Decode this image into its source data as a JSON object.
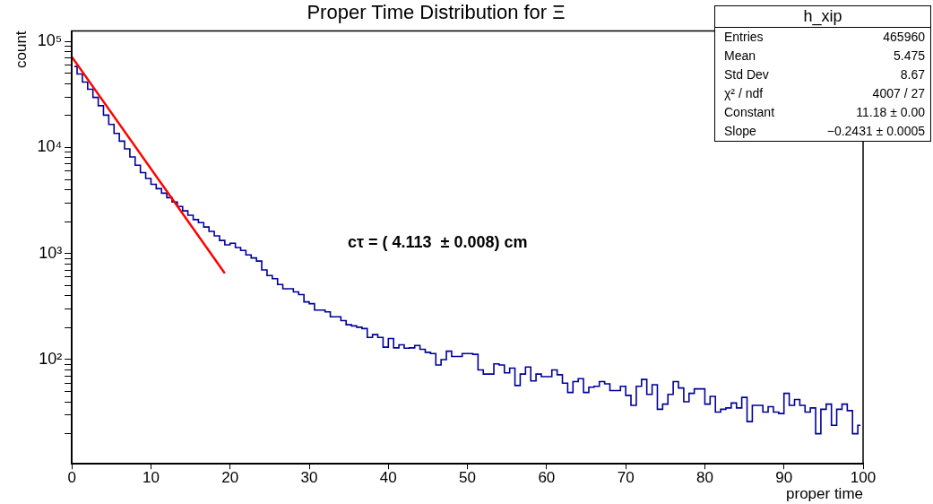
{
  "chart_data": {
    "type": "step",
    "title": "Proper Time Distribution for Ξ",
    "xlabel": "proper time",
    "ylabel": "count",
    "log": "y",
    "grid": false,
    "legend": false,
    "xlim": [
      0,
      100
    ],
    "xticks": [
      0,
      10,
      20,
      30,
      40,
      50,
      60,
      70,
      80,
      90,
      100
    ],
    "ylim": [
      10.4,
      126000
    ],
    "yticks": [
      {
        "value": 20,
        "label": null
      },
      {
        "value": 30,
        "label": null
      },
      {
        "value": 40,
        "label": null
      },
      {
        "value": 50,
        "label": null
      },
      {
        "value": 60,
        "label": null
      },
      {
        "value": 70,
        "label": null
      },
      {
        "value": 80,
        "label": null
      },
      {
        "value": 90,
        "label": null
      },
      {
        "value": 100,
        "label": "10²"
      },
      {
        "value": 200,
        "label": null
      },
      {
        "value": 300,
        "label": null
      },
      {
        "value": 400,
        "label": null
      },
      {
        "value": 500,
        "label": null
      },
      {
        "value": 600,
        "label": null
      },
      {
        "value": 700,
        "label": null
      },
      {
        "value": 800,
        "label": null
      },
      {
        "value": 900,
        "label": null
      },
      {
        "value": 1000,
        "label": "10³"
      },
      {
        "value": 2000,
        "label": null
      },
      {
        "value": 3000,
        "label": null
      },
      {
        "value": 4000,
        "label": null
      },
      {
        "value": 5000,
        "label": null
      },
      {
        "value": 6000,
        "label": null
      },
      {
        "value": 7000,
        "label": null
      },
      {
        "value": 8000,
        "label": null
      },
      {
        "value": 9000,
        "label": null
      },
      {
        "value": 10000,
        "label": "10⁴"
      },
      {
        "value": 20000,
        "label": null
      },
      {
        "value": 30000,
        "label": null
      },
      {
        "value": 40000,
        "label": null
      },
      {
        "value": 50000,
        "label": null
      },
      {
        "value": 60000,
        "label": null
      },
      {
        "value": 70000,
        "label": null
      },
      {
        "value": 80000,
        "label": null
      },
      {
        "value": 90000,
        "label": null
      },
      {
        "value": 100000,
        "label": "10⁵"
      }
    ],
    "x": [
      0.33,
      1,
      1.67,
      2.33,
      3,
      3.67,
      4.33,
      5,
      5.67,
      6.33,
      7,
      7.67,
      8.33,
      9,
      9.67,
      10.33,
      11,
      11.67,
      12.33,
      13,
      13.67,
      14.33,
      15,
      15.67,
      16.33,
      17,
      17.67,
      18.33,
      19,
      19.67,
      20.33,
      21,
      21.67,
      22.33,
      23,
      23.67,
      24.33,
      25,
      25.67,
      26.33,
      27,
      27.67,
      28.33,
      29,
      29.67,
      30.33,
      31,
      31.67,
      32.33,
      33,
      33.67,
      34.33,
      35,
      35.67,
      36.33,
      37,
      37.67,
      38.33,
      39,
      39.67,
      40.33,
      41,
      41.67,
      42.33,
      43,
      43.67,
      44.33,
      45,
      45.67,
      46.33,
      47,
      47.67,
      48.33,
      49,
      49.67,
      50.33,
      51,
      51.67,
      52.33,
      53,
      53.67,
      54.33,
      55,
      55.67,
      56.33,
      57,
      57.67,
      58.33,
      59,
      59.67,
      60.33,
      61,
      61.67,
      62.33,
      63,
      63.67,
      64.33,
      65,
      65.67,
      66.33,
      67,
      67.67,
      68.33,
      69,
      69.67,
      70.33,
      71,
      71.67,
      72.33,
      73,
      73.67,
      74.33,
      75,
      75.67,
      76.33,
      77,
      77.67,
      78.33,
      79,
      79.67,
      80.33,
      81,
      81.67,
      82.33,
      83,
      83.67,
      84.33,
      85,
      85.67,
      86.33,
      87,
      87.67,
      88.33,
      89,
      89.67,
      90.33,
      91,
      91.67,
      92.33,
      93,
      93.67,
      94.33,
      95,
      95.67,
      96.33,
      97,
      97.67,
      98.33,
      99,
      99.67
    ],
    "series": [
      {
        "color": "#000099",
        "values": [
          58100,
          49400,
          41400,
          35500,
          29700,
          24800,
          20200,
          16500,
          13600,
          11500,
          9700,
          8150,
          6810,
          5800,
          5110,
          4500,
          4090,
          3710,
          3370,
          3060,
          2780,
          2530,
          2300,
          2090,
          1960,
          1780,
          1620,
          1470,
          1330,
          1210,
          1250,
          1140,
          1070,
          970,
          910,
          850,
          700,
          620,
          580,
          510,
          465,
          465,
          435,
          410,
          350,
          337,
          293,
          293,
          282,
          253,
          253,
          233,
          213,
          208,
          202,
          196,
          162,
          172,
          162,
          131,
          158,
          129,
          138,
          128,
          129,
          136,
          125,
          117,
          114,
          89,
          100,
          120,
          107,
          107,
          114,
          114,
          112,
          80,
          73,
          73,
          91,
          89,
          75,
          83,
          57,
          73,
          85,
          63,
          73,
          69,
          69,
          80,
          72,
          60,
          49,
          62,
          66,
          49,
          55,
          56,
          62,
          59,
          51,
          51,
          56,
          46,
          37,
          56,
          65,
          47,
          58,
          34,
          38,
          47,
          62,
          54,
          40,
          48,
          53,
          53,
          38,
          45,
          32,
          34,
          35,
          39,
          35,
          44,
          26,
          37,
          37,
          32,
          36,
          32,
          31,
          48,
          37,
          42,
          37,
          32,
          35,
          20,
          34,
          38,
          24,
          34,
          38,
          33,
          20,
          24
        ]
      },
      {
        "type": "line",
        "color": "#ff0000",
        "x": [
          0,
          19.33
        ],
        "values": [
          71700,
          652
        ]
      }
    ],
    "annotations": [
      "h_xip",
      "Entries",
      "465960",
      "Mean",
      "5.475",
      "Std Dev",
      "8.67",
      "χ² / ndf",
      "4007 / 27",
      "Constant",
      "11.18 ± 0.00",
      "Slope",
      "−0.2431 ± 0.0005",
      "cτ = ( 4.113  ± 0.008) cm"
    ]
  }
}
